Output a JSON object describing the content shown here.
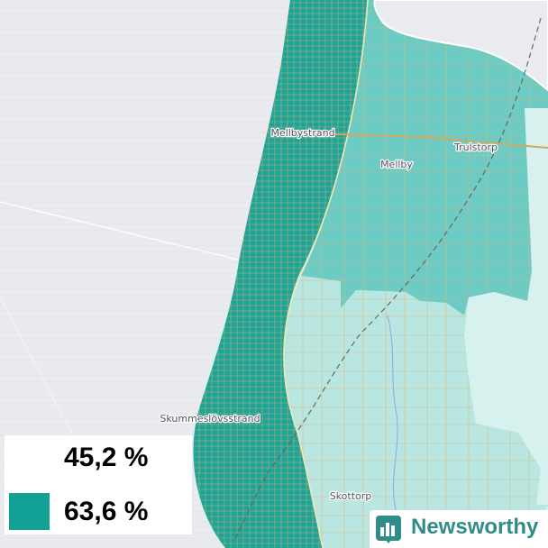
{
  "map": {
    "places": [
      {
        "name": "Mellbystrand"
      },
      {
        "name": "Trulstorp"
      },
      {
        "name": "Mellby"
      },
      {
        "name": "Skummeslövsstrand"
      },
      {
        "name": "Skottorp"
      }
    ],
    "colors": {
      "sea": "#e9ebef",
      "dark_teal": "#1aa49a",
      "mid_teal": "#6dcbc4",
      "light_teal": "#b9e6e1",
      "pale_teal": "#d6f1ee",
      "road": "#d4b06a"
    }
  },
  "legend": {
    "items": [
      {
        "value": "45,2 %",
        "color": "#ffffff"
      },
      {
        "value": "63,6 %",
        "color": "#13a196"
      }
    ]
  },
  "brand": {
    "name": "Newsworthy",
    "icon": "bar-chart-logo-icon",
    "color": "#2f8c88"
  }
}
